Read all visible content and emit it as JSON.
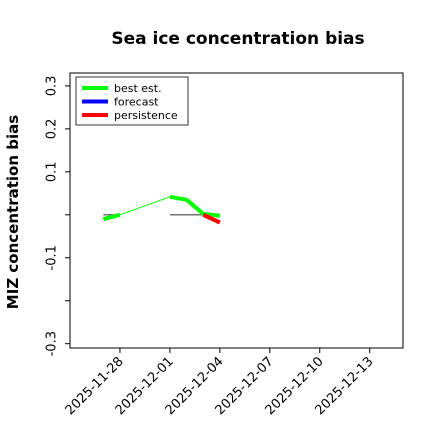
{
  "chart_data": {
    "type": "line",
    "title": "Sea ice concentration bias",
    "xlabel": "",
    "ylabel": "MIZ concentration bias",
    "ylim": [
      -0.31,
      0.33
    ],
    "y_ticks": [
      {
        "value": 0.3,
        "label": "0.3"
      },
      {
        "value": 0.2,
        "label": "0.2"
      },
      {
        "value": 0.1,
        "label": "0.1"
      },
      {
        "value": 0.0,
        "label": ""
      },
      {
        "value": -0.1,
        "label": "-0.1"
      },
      {
        "value": -0.2,
        "label": ""
      },
      {
        "value": -0.3,
        "label": "-0.3"
      }
    ],
    "xlim": [
      "2025-11-25",
      "2025-12-15"
    ],
    "x_ticks": [
      {
        "value": "2025-11-28",
        "label": "2025-11-28",
        "highlight": false
      },
      {
        "value": "2025-12-01",
        "label": "2025-12-01",
        "highlight": false
      },
      {
        "value": "2025-12-04",
        "label": "2025-12-04",
        "highlight": true
      },
      {
        "value": "2025-12-07",
        "label": "2025-12-07",
        "highlight": false
      },
      {
        "value": "2025-12-10",
        "label": "2025-12-10",
        "highlight": false
      },
      {
        "value": "2025-12-13",
        "label": "2025-12-13",
        "highlight": false
      }
    ],
    "highlight_color": "#228B22",
    "grid": false,
    "legend_position": "top-left",
    "series": [
      {
        "name": "best est.",
        "color": "#00ff00",
        "segments": [
          {
            "x": [
              "2025-11-27",
              "2025-11-28"
            ],
            "y": [
              -0.01,
              0.0
            ],
            "style": "thick"
          },
          {
            "x": [
              "2025-11-28",
              "2025-12-01"
            ],
            "y": [
              0.0,
              0.042
            ],
            "style": "thin"
          },
          {
            "x": [
              "2025-12-01",
              "2025-12-02",
              "2025-12-03",
              "2025-12-04"
            ],
            "y": [
              0.042,
              0.035,
              0.002,
              -0.002
            ],
            "style": "thick"
          }
        ]
      },
      {
        "name": "forecast",
        "color": "#0000ff",
        "segments": []
      },
      {
        "name": "persistence",
        "color": "#ff0000",
        "segments": [
          {
            "x": [
              "2025-12-03",
              "2025-12-04"
            ],
            "y": [
              0.0,
              -0.018
            ],
            "style": "thick"
          }
        ]
      }
    ],
    "reference_lines": [
      {
        "x": [
          "2025-11-27",
          "2025-11-28"
        ],
        "y": [
          0.0,
          0.0
        ],
        "color": "#444444"
      },
      {
        "x": [
          "2025-12-01",
          "2025-12-04"
        ],
        "y": [
          0.0,
          0.0
        ],
        "color": "#444444"
      }
    ]
  }
}
